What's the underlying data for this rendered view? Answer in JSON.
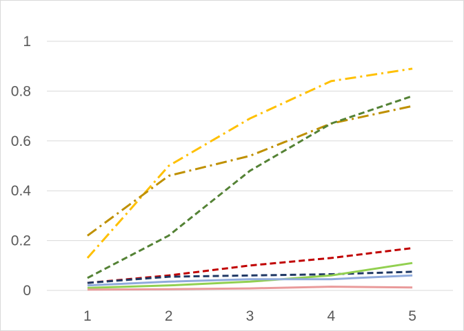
{
  "chart_data": {
    "type": "line",
    "title": "",
    "xlabel": "",
    "ylabel": "",
    "categories": [
      "1",
      "2",
      "3",
      "4",
      "5"
    ],
    "ylim": [
      0,
      1
    ],
    "y_ticks": [
      "0",
      "0.2",
      "0.4",
      "0.6",
      "0.8",
      "1"
    ],
    "grid": "horizontal",
    "legend": "none",
    "series": [
      {
        "color": "#FFC000",
        "dash": "dashdot",
        "values": [
          0.13,
          0.5,
          0.69,
          0.84,
          0.89
        ]
      },
      {
        "color": "#BF9000",
        "dash": "dashdot",
        "values": [
          0.22,
          0.46,
          0.54,
          0.67,
          0.74
        ]
      },
      {
        "color": "#548235",
        "dash": "dash",
        "values": [
          0.05,
          0.22,
          0.48,
          0.67,
          0.78
        ]
      },
      {
        "color": "#C00000",
        "dash": "dash",
        "values": [
          0.03,
          0.06,
          0.1,
          0.13,
          0.17
        ]
      },
      {
        "color": "#1F3864",
        "dash": "dash",
        "values": [
          0.03,
          0.055,
          0.06,
          0.065,
          0.075
        ]
      },
      {
        "color": "#92D050",
        "dash": "solid",
        "values": [
          0.01,
          0.02,
          0.035,
          0.06,
          0.11
        ]
      },
      {
        "color": "#8FAADC",
        "dash": "solid",
        "values": [
          0.02,
          0.035,
          0.045,
          0.045,
          0.06
        ]
      },
      {
        "color": "#E99A9A",
        "dash": "solid",
        "values": [
          0.003,
          0.005,
          0.008,
          0.015,
          0.012
        ]
      }
    ]
  }
}
